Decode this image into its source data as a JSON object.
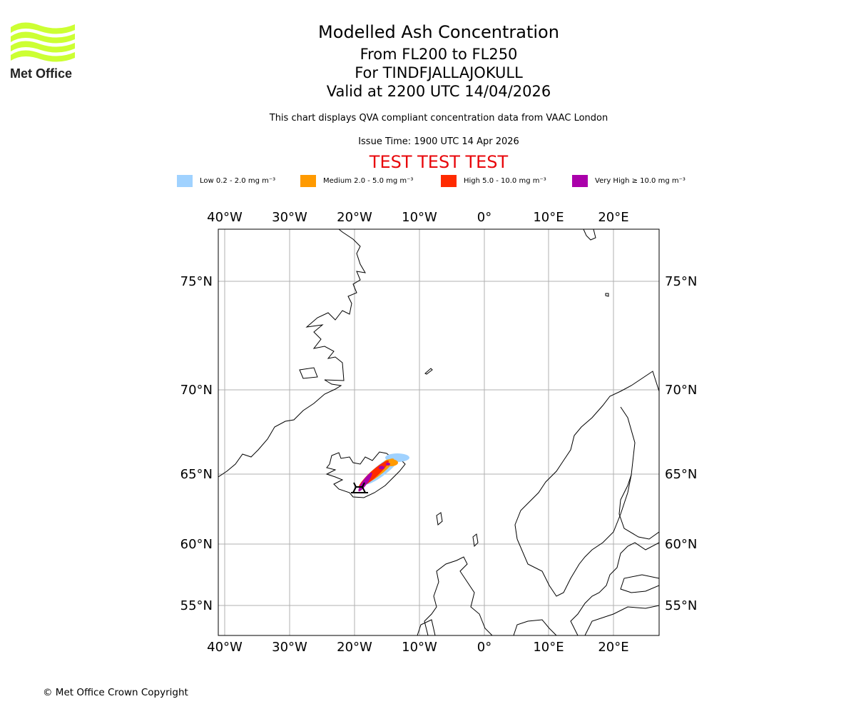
{
  "logo": {
    "text": "Met Office",
    "color": "#ccff33"
  },
  "title": {
    "line1": "Modelled Ash Concentration",
    "line2": "From FL200 to FL250",
    "line3": "For TINDFJALLAJOKULL",
    "line4": "Valid at 2200 UTC 14/04/2026"
  },
  "subtitle": "This chart displays QVA compliant concentration data from VAAC London",
  "issue_time": "Issue Time: 1900 UTC 14 Apr 2026",
  "test_banner": "TEST TEST TEST",
  "legend": [
    {
      "label": "Low 0.2 - 2.0 mg m⁻³",
      "color": "#a0d2ff"
    },
    {
      "label": "Medium 2.0 - 5.0 mg m⁻³",
      "color": "#ff9a00"
    },
    {
      "label": "High 5.0 - 10.0 mg m⁻³",
      "color": "#ff2a00"
    },
    {
      "label": "Very High ≥ 10.0 mg m⁻³",
      "color": "#aa00aa"
    }
  ],
  "map": {
    "lon_labels": [
      "40°W",
      "30°W",
      "20°W",
      "10°W",
      "0°",
      "10°E",
      "20°E"
    ],
    "lat_labels": [
      "75°N",
      "70°N",
      "65°N",
      "60°N",
      "55°N"
    ],
    "volcano": "TINDFJALLAJOKULL"
  },
  "copyright": "© Met Office Crown Copyright"
}
